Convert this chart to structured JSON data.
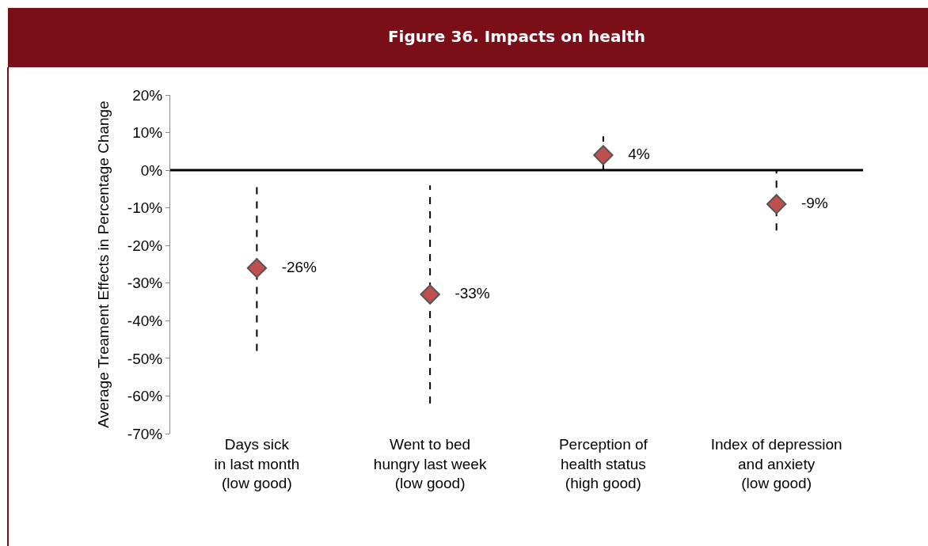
{
  "chart_data": {
    "type": "scatter",
    "title": "Figure 36. Impacts on health",
    "ylabel": "Average Treament Effects in Percentage Change",
    "categories": [
      "Days sick\nin last month\n(low good)",
      "Went to bed\nhungry last week\n(low good)",
      "Perception of\nhealth status\n(high good)",
      "Index of depression\nand anxiety\n(low good)"
    ],
    "values": [
      -26,
      -33,
      4,
      -9
    ],
    "value_labels": [
      "-26%",
      "-33%",
      "4%",
      "-9%"
    ],
    "errors": [
      [
        -48,
        -4
      ],
      [
        -62,
        -4
      ],
      [
        0,
        9
      ],
      [
        -16,
        0
      ]
    ],
    "color": "#c0504d",
    "marker": "diamond",
    "line_style": "dashed",
    "ylim": [
      -70,
      20
    ],
    "yticks": [
      {
        "value": 20,
        "label": "20%"
      },
      {
        "value": 10,
        "label": "10%"
      },
      {
        "value": 0,
        "label": "0%"
      },
      {
        "value": -10,
        "label": "-10%"
      },
      {
        "value": -20,
        "label": "-20%"
      },
      {
        "value": -30,
        "label": "-30%"
      },
      {
        "value": -40,
        "label": "-40%"
      },
      {
        "value": -50,
        "label": "-50%"
      },
      {
        "value": -60,
        "label": "-60%"
      },
      {
        "value": -70,
        "label": "-70%"
      }
    ],
    "ref_lines": [
      {
        "axis": "y",
        "value": 0,
        "color": "#000000"
      }
    ]
  }
}
